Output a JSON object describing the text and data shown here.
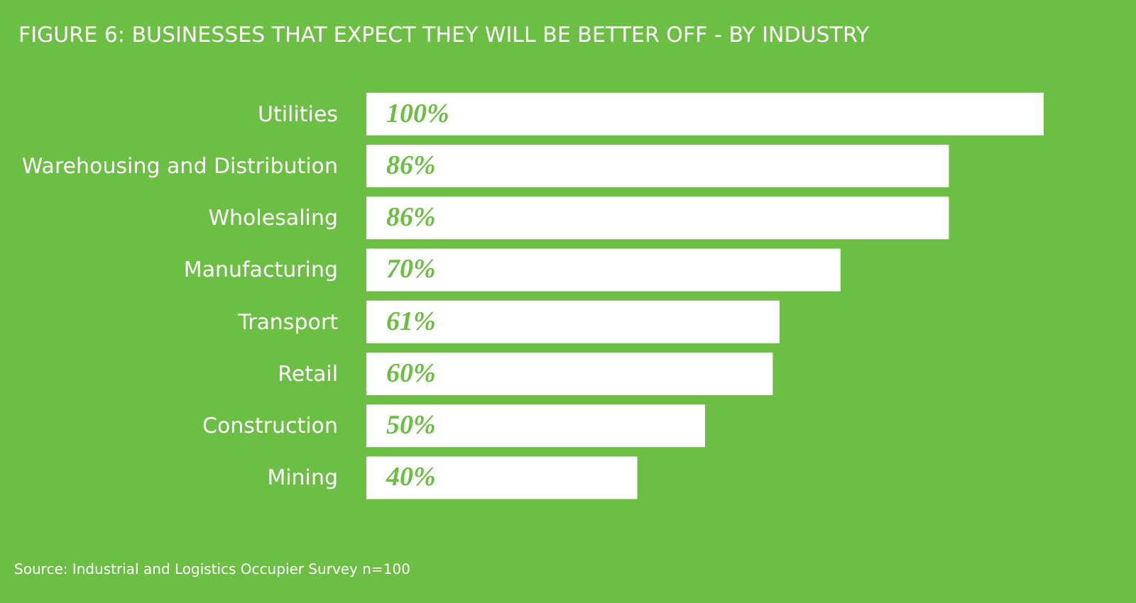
{
  "chart_data": {
    "type": "bar",
    "orientation": "horizontal",
    "title": "FIGURE 6: BUSINESSES THAT EXPECT THEY WILL BE BETTER OFF - BY INDUSTRY",
    "categories": [
      "Utilities",
      "Warehousing and Distribution",
      "Wholesaling",
      "Manufacturing",
      "Transport",
      "Retail",
      "Construction",
      "Mining"
    ],
    "values": [
      100,
      86,
      86,
      70,
      61,
      60,
      50,
      40
    ],
    "value_labels": [
      "100%",
      "86%",
      "86%",
      "70%",
      "61%",
      "60%",
      "50%",
      "40%"
    ],
    "color": "#ffffff",
    "annotations": [
      "Source: Industrial and Logistics Occupier Survey n=100"
    ]
  }
}
